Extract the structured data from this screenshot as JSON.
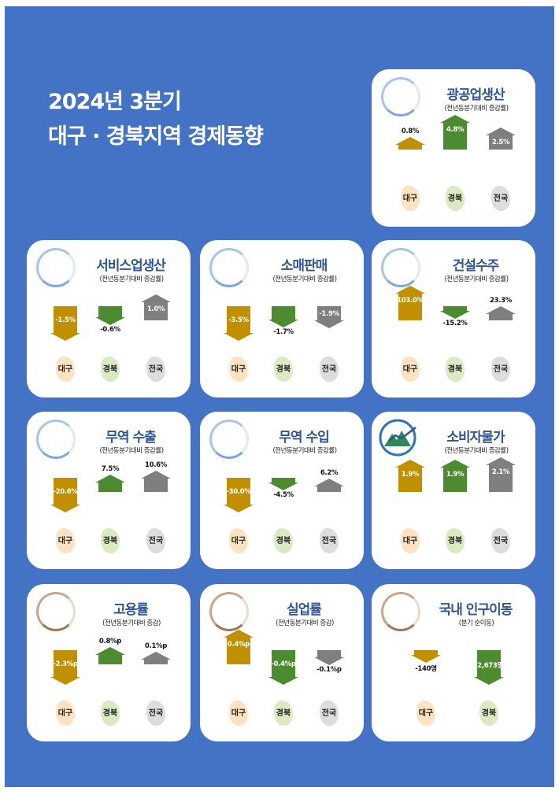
{
  "title": {
    "line1": "2024년 3분기",
    "line2": "대구 · 경북지역 경제동향"
  },
  "colors": {
    "daegu": "#c09000",
    "gyeongbuk": "#4c8b2f",
    "national": "#7f7f7f",
    "daegu_map": "#fde3c2",
    "gyeongbuk_map": "#dceac4",
    "national_map": "#dddddd"
  },
  "regions": [
    "대구",
    "경북",
    "전국"
  ],
  "chart_data": [
    {
      "type": "bar",
      "title": "광공업생산",
      "subtitle": "(전년동분기대비 증감률)",
      "categories": [
        "대구",
        "경북",
        "전국"
      ],
      "values": [
        0.8,
        4.8,
        2.5
      ],
      "labels": [
        "0.8%",
        "4.8%",
        "2.5%"
      ]
    },
    {
      "type": "bar",
      "title": "서비스업생산",
      "subtitle": "(전년동분기대비 증감률)",
      "categories": [
        "대구",
        "경북",
        "전국"
      ],
      "values": [
        -1.5,
        -0.6,
        1.0
      ],
      "labels": [
        "-1.5%",
        "-0.6%",
        "1.0%"
      ]
    },
    {
      "type": "bar",
      "title": "소매판매",
      "subtitle": "(전년동분기대비 증감률)",
      "categories": [
        "대구",
        "경북",
        "전국"
      ],
      "values": [
        -3.5,
        -1.7,
        -1.9
      ],
      "labels": [
        "-3.5%",
        "-1.7%",
        "-1.9%"
      ]
    },
    {
      "type": "bar",
      "title": "건설수주",
      "subtitle": "(전년동분기대비 증감률)",
      "categories": [
        "대구",
        "경북",
        "전국"
      ],
      "values": [
        103.0,
        -15.2,
        23.3
      ],
      "labels": [
        "103.0%",
        "-15.2%",
        "23.3%"
      ]
    },
    {
      "type": "bar",
      "title": "무역 수출",
      "subtitle": "(전년동분기대비 증감률)",
      "categories": [
        "대구",
        "경북",
        "전국"
      ],
      "values": [
        -20.6,
        7.5,
        10.6
      ],
      "labels": [
        "-20.6%",
        "7.5%",
        "10.6%"
      ]
    },
    {
      "type": "bar",
      "title": "무역 수입",
      "subtitle": "(전년동분기대비 증감률)",
      "categories": [
        "대구",
        "경북",
        "전국"
      ],
      "values": [
        -30.0,
        -4.5,
        6.2
      ],
      "labels": [
        "-30.0%",
        "-4.5%",
        "6.2%"
      ]
    },
    {
      "type": "bar",
      "title": "소비자물가",
      "subtitle": "(전년동분기대비 증감률)",
      "categories": [
        "대구",
        "경북",
        "전국"
      ],
      "values": [
        1.9,
        1.9,
        2.1
      ],
      "labels": [
        "1.9%",
        "1.9%",
        "2.1%"
      ]
    },
    {
      "type": "bar",
      "title": "고용률",
      "subtitle": "(전년동분기대비 증감)",
      "categories": [
        "대구",
        "경북",
        "전국"
      ],
      "values": [
        -2.3,
        0.8,
        0.1
      ],
      "labels": [
        "-2.3%p",
        "0.8%p",
        "0.1%p"
      ]
    },
    {
      "type": "bar",
      "title": "실업률",
      "subtitle": "(전년동분기대비 증감)",
      "categories": [
        "대구",
        "경북",
        "전국"
      ],
      "values": [
        0.4,
        -0.4,
        -0.1
      ],
      "labels": [
        "0.4%p",
        "-0.4%p",
        "-0.1%p"
      ]
    },
    {
      "type": "bar",
      "title": "국내 인구이동",
      "subtitle": "(분기 순이동)",
      "categories": [
        "대구",
        "경북"
      ],
      "values": [
        -140,
        -2673
      ],
      "labels": [
        "-140명",
        "-2,673명"
      ]
    }
  ]
}
